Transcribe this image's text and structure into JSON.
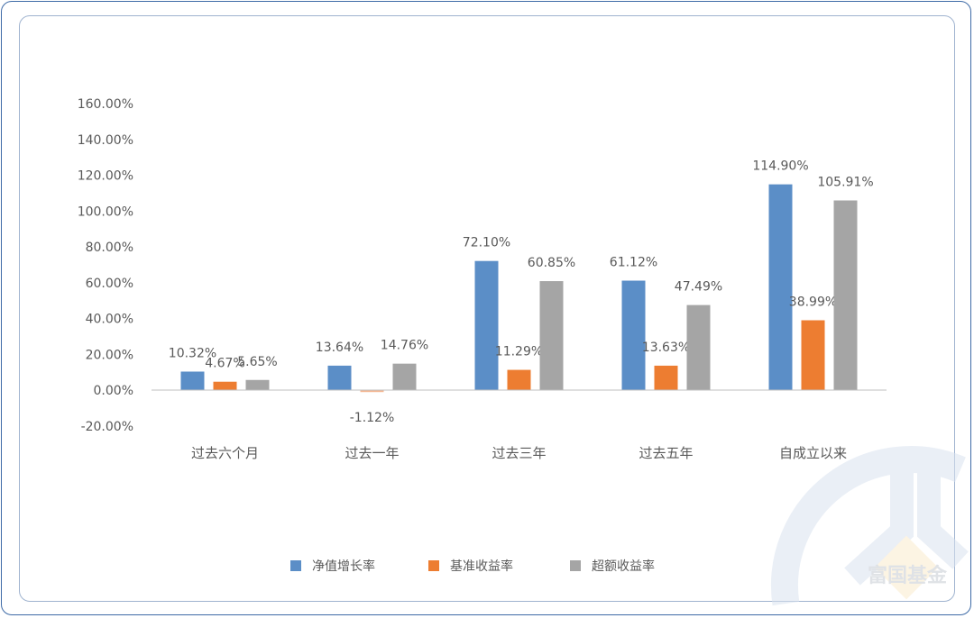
{
  "chart_data": {
    "type": "bar",
    "title": "",
    "xlabel": "",
    "ylabel": "",
    "ylim": [
      -20,
      160
    ],
    "yticks": [
      "-20.00%",
      "0.00%",
      "20.00%",
      "40.00%",
      "60.00%",
      "80.00%",
      "100.00%",
      "120.00%",
      "140.00%",
      "160.00%"
    ],
    "categories": [
      "过去六个月",
      "过去一年",
      "过去三年",
      "过去五年",
      "自成立以来"
    ],
    "series": [
      {
        "name": "净值增长率",
        "color": "#5b8ec7",
        "values": [
          10.32,
          13.64,
          72.1,
          61.12,
          114.9
        ],
        "labels": [
          "10.32%",
          "13.64%",
          "72.10%",
          "61.12%",
          "114.90%"
        ]
      },
      {
        "name": "基准收益率",
        "color": "#ed7d31",
        "values": [
          4.67,
          -1.12,
          11.29,
          13.63,
          38.99
        ],
        "labels": [
          "4.67%",
          "-1.12%",
          "11.29%",
          "13.63%",
          "38.99%"
        ]
      },
      {
        "name": "超额收益率",
        "color": "#a5a5a5",
        "values": [
          5.65,
          14.76,
          60.85,
          47.49,
          105.91
        ],
        "labels": [
          "5.65%",
          "14.76%",
          "60.85%",
          "47.49%",
          "105.91%"
        ]
      }
    ],
    "legend": "bottom",
    "grid": false
  },
  "watermark": {
    "text": "富国基金"
  }
}
